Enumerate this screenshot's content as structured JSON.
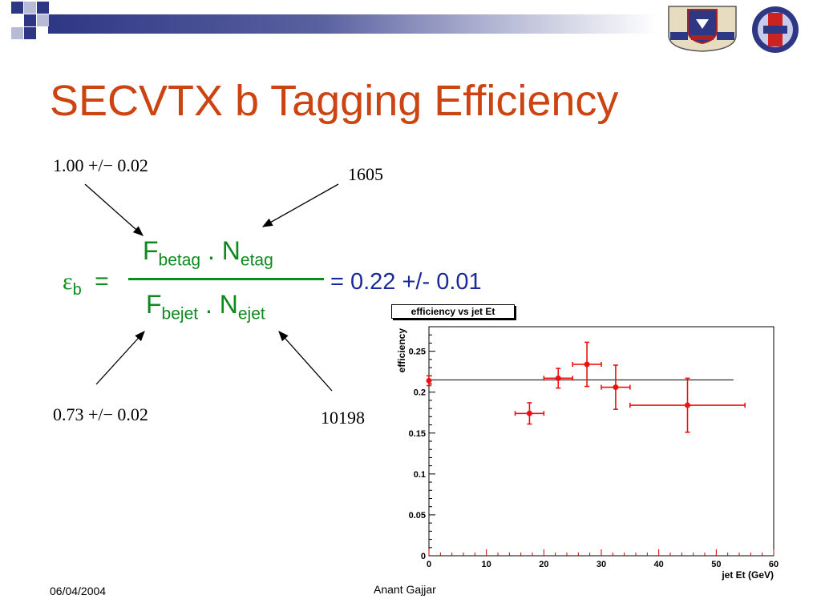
{
  "slide": {
    "title": "SECVTX b Tagging Efficiency",
    "footer_date": "06/04/2004",
    "footer_author": "Anant Gajjar",
    "accent_color": "#cc4411",
    "bar_color": "#2e3784"
  },
  "annotations": {
    "top_left": "1.00 +/− 0.02",
    "top_right": "1605",
    "bottom_left": "0.73 +/− 0.02",
    "bottom_right": "10198"
  },
  "formula": {
    "lhs_symbol": "ε",
    "lhs_sub": "b",
    "equals": "=",
    "num_F": "F",
    "num_F_sub": "betag",
    "num_dot": ".",
    "num_N": "N",
    "num_N_sub": "etag",
    "den_F": "F",
    "den_F_sub": "bejet",
    "den_dot": ".",
    "den_N": "N",
    "den_N_sub": "ejet",
    "result": "= 0.22 +/- 0.01",
    "color": "#0f8a1f",
    "result_color": "#1a2a9a"
  },
  "logos": {
    "left": "university-crest-icon",
    "right": "cdf-logo-icon"
  },
  "chart_data": {
    "type": "scatter",
    "title": "efficiency vs jet Et",
    "xlabel": "jet Et (GeV)",
    "ylabel": "efficiency",
    "xlim": [
      0,
      60
    ],
    "ylim": [
      0,
      0.28
    ],
    "x_ticks": [
      "0",
      "10",
      "20",
      "30",
      "40",
      "50",
      "60"
    ],
    "y_ticks": [
      "0",
      "0.05",
      "0.1",
      "0.15",
      "0.2",
      "0.25"
    ],
    "x_tick_values": [
      0,
      10,
      20,
      30,
      40,
      50,
      60
    ],
    "y_tick_values": [
      0,
      0.05,
      0.1,
      0.15,
      0.2,
      0.25
    ],
    "points": [
      {
        "x": 0,
        "y": 0.214,
        "xerr": 0,
        "yerr": 0.006
      },
      {
        "x": 17.5,
        "y": 0.174,
        "xerr": 2.5,
        "yerr": 0.013
      },
      {
        "x": 22.5,
        "y": 0.217,
        "xerr": 2.5,
        "yerr": 0.012
      },
      {
        "x": 27.5,
        "y": 0.234,
        "xerr": 2.5,
        "yerr": 0.027
      },
      {
        "x": 32.5,
        "y": 0.206,
        "xerr": 2.5,
        "yerr": 0.027
      },
      {
        "x": 45,
        "y": 0.184,
        "xerr": 10,
        "yerr": 0.033
      }
    ],
    "fit": {
      "y": 0.215,
      "x_from": 0,
      "x_to": 53
    },
    "grid": false,
    "point_color": "#ee1111",
    "fit_color": "#000000"
  }
}
